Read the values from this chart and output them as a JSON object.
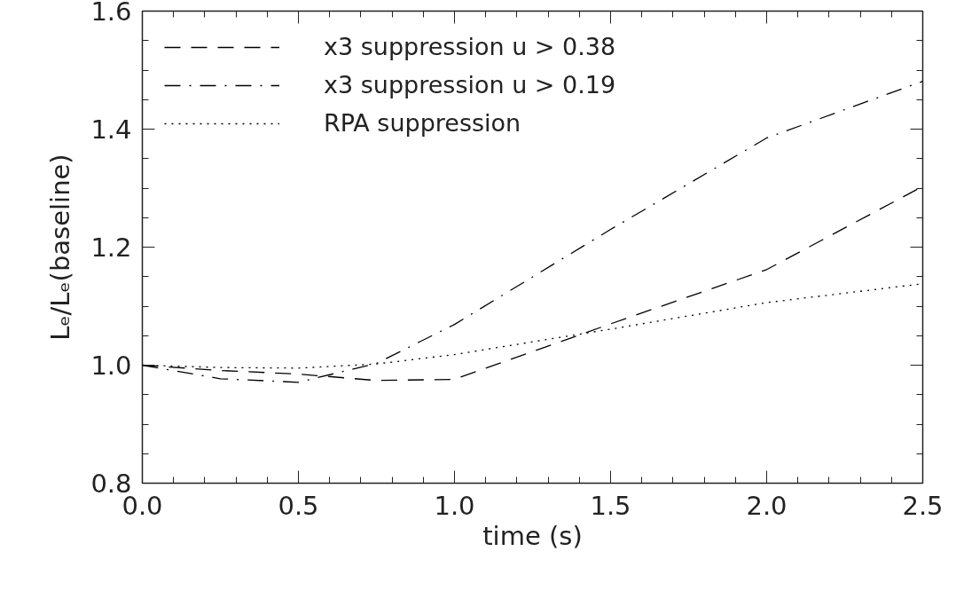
{
  "chart_data": {
    "type": "line",
    "xlabel": "time (s)",
    "ylabel": "Lₑ/Lₑ(baseline)",
    "x": [
      0.0,
      0.25,
      0.5,
      0.75,
      1.0,
      1.5,
      2.0,
      2.5
    ],
    "series": [
      {
        "name": "x3 suppression u > 0.38",
        "color": "#000000",
        "line_style": "dashed",
        "values": [
          1.0,
          0.991,
          0.985,
          0.974,
          0.976,
          1.07,
          1.162,
          1.303
        ]
      },
      {
        "name": "x3 suppression u > 0.19",
        "color": "#000000",
        "line_style": "dashdot",
        "values": [
          1.0,
          0.977,
          0.971,
          1.003,
          1.069,
          1.23,
          1.385,
          1.481
        ]
      },
      {
        "name": "RPA suppression",
        "color": "#000000",
        "line_style": "dotted",
        "values": [
          1.0,
          0.996,
          0.995,
          1.002,
          1.018,
          1.061,
          1.106,
          1.138
        ]
      }
    ],
    "xlim": [
      0.0,
      2.5
    ],
    "xticks": [
      {
        "value": 0.0,
        "label": "0.0"
      },
      0.5,
      {
        "value": 1.0,
        "label": "1.0"
      },
      1.5,
      {
        "value": 2.0,
        "label": "2.0"
      },
      2.5
    ],
    "ylim": [
      0.8,
      1.6
    ],
    "yticks": [
      0.8,
      {
        "value": 1.0,
        "label": "1.0"
      },
      1.2,
      1.4,
      1.6
    ],
    "grid": false,
    "legend": "top left"
  }
}
